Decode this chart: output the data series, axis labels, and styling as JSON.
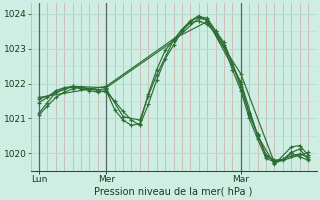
{
  "background_color": "#ceeee4",
  "plot_bg_color": "#ceeee4",
  "grid_color_major": "#b8ddd0",
  "grid_color_minor": "#d4ece4",
  "vline_color": "#d08080",
  "line_color": "#2d6e35",
  "ylabel": "Pression niveau de la mer( hPa )",
  "ylim": [
    1019.5,
    1024.3
  ],
  "yticks": [
    1020,
    1021,
    1022,
    1023,
    1024
  ],
  "x_tick_labels": [
    "Lun",
    "Mer",
    "Mar"
  ],
  "x_tick_positions": [
    0,
    24,
    72
  ],
  "vline_positions": [
    0,
    24,
    72
  ],
  "xlim": [
    -3,
    99
  ],
  "series": [
    [
      [
        0,
        1021.1
      ],
      [
        3,
        1021.35
      ],
      [
        6,
        1021.6
      ],
      [
        9,
        1021.75
      ],
      [
        12,
        1021.85
      ],
      [
        15,
        1021.9
      ],
      [
        18,
        1021.85
      ],
      [
        21,
        1021.8
      ],
      [
        24,
        1021.75
      ],
      [
        27,
        1021.5
      ],
      [
        30,
        1021.2
      ],
      [
        33,
        1020.95
      ],
      [
        36,
        1020.8
      ],
      [
        39,
        1021.4
      ],
      [
        42,
        1022.1
      ],
      [
        45,
        1022.7
      ],
      [
        48,
        1023.1
      ],
      [
        51,
        1023.5
      ],
      [
        54,
        1023.75
      ],
      [
        57,
        1023.8
      ],
      [
        60,
        1023.7
      ],
      [
        63,
        1023.45
      ],
      [
        66,
        1023.05
      ],
      [
        69,
        1022.4
      ],
      [
        72,
        1021.8
      ],
      [
        75,
        1021.0
      ],
      [
        78,
        1020.4
      ],
      [
        81,
        1019.85
      ],
      [
        84,
        1019.75
      ],
      [
        87,
        1019.8
      ],
      [
        90,
        1020.0
      ],
      [
        93,
        1019.9
      ],
      [
        96,
        1019.8
      ]
    ],
    [
      [
        0,
        1021.15
      ],
      [
        3,
        1021.45
      ],
      [
        6,
        1021.75
      ],
      [
        9,
        1021.85
      ],
      [
        12,
        1021.9
      ],
      [
        15,
        1021.85
      ],
      [
        18,
        1021.8
      ],
      [
        21,
        1021.75
      ],
      [
        24,
        1021.8
      ],
      [
        27,
        1021.25
      ],
      [
        30,
        1020.95
      ],
      [
        33,
        1020.8
      ],
      [
        36,
        1020.85
      ],
      [
        39,
        1021.7
      ],
      [
        42,
        1022.4
      ],
      [
        45,
        1022.95
      ],
      [
        48,
        1023.25
      ],
      [
        51,
        1023.55
      ],
      [
        54,
        1023.8
      ],
      [
        57,
        1023.95
      ],
      [
        60,
        1023.8
      ],
      [
        63,
        1023.5
      ],
      [
        66,
        1023.1
      ],
      [
        69,
        1022.55
      ],
      [
        72,
        1021.9
      ],
      [
        75,
        1021.15
      ],
      [
        78,
        1020.55
      ],
      [
        81,
        1019.95
      ],
      [
        84,
        1019.8
      ],
      [
        87,
        1019.82
      ],
      [
        90,
        1019.92
      ],
      [
        93,
        1019.98
      ],
      [
        96,
        1019.88
      ]
    ],
    [
      [
        0,
        1021.45
      ],
      [
        3,
        1021.6
      ],
      [
        6,
        1021.8
      ],
      [
        9,
        1021.88
      ],
      [
        12,
        1021.92
      ],
      [
        15,
        1021.88
      ],
      [
        18,
        1021.85
      ],
      [
        21,
        1021.82
      ],
      [
        24,
        1021.85
      ],
      [
        30,
        1021.05
      ],
      [
        36,
        1020.95
      ],
      [
        39,
        1021.65
      ],
      [
        42,
        1022.25
      ],
      [
        48,
        1023.25
      ],
      [
        51,
        1023.55
      ],
      [
        54,
        1023.78
      ],
      [
        57,
        1023.92
      ],
      [
        60,
        1023.88
      ],
      [
        63,
        1023.52
      ],
      [
        66,
        1023.18
      ],
      [
        72,
        1021.98
      ],
      [
        75,
        1021.12
      ],
      [
        78,
        1020.52
      ],
      [
        81,
        1019.92
      ],
      [
        84,
        1019.78
      ],
      [
        87,
        1019.82
      ],
      [
        90,
        1020.02
      ],
      [
        93,
        1020.12
      ],
      [
        96,
        1019.82
      ]
    ],
    [
      [
        0,
        1021.55
      ],
      [
        12,
        1021.92
      ],
      [
        24,
        1021.88
      ],
      [
        48,
        1023.22
      ],
      [
        57,
        1023.88
      ],
      [
        60,
        1023.82
      ],
      [
        72,
        1022.05
      ],
      [
        78,
        1020.5
      ],
      [
        84,
        1019.68
      ],
      [
        90,
        1020.18
      ],
      [
        93,
        1020.22
      ],
      [
        96,
        1019.95
      ]
    ],
    [
      [
        0,
        1021.6
      ],
      [
        24,
        1021.92
      ],
      [
        48,
        1023.28
      ],
      [
        60,
        1023.78
      ],
      [
        72,
        1022.28
      ],
      [
        84,
        1019.72
      ],
      [
        96,
        1020.02
      ]
    ]
  ]
}
